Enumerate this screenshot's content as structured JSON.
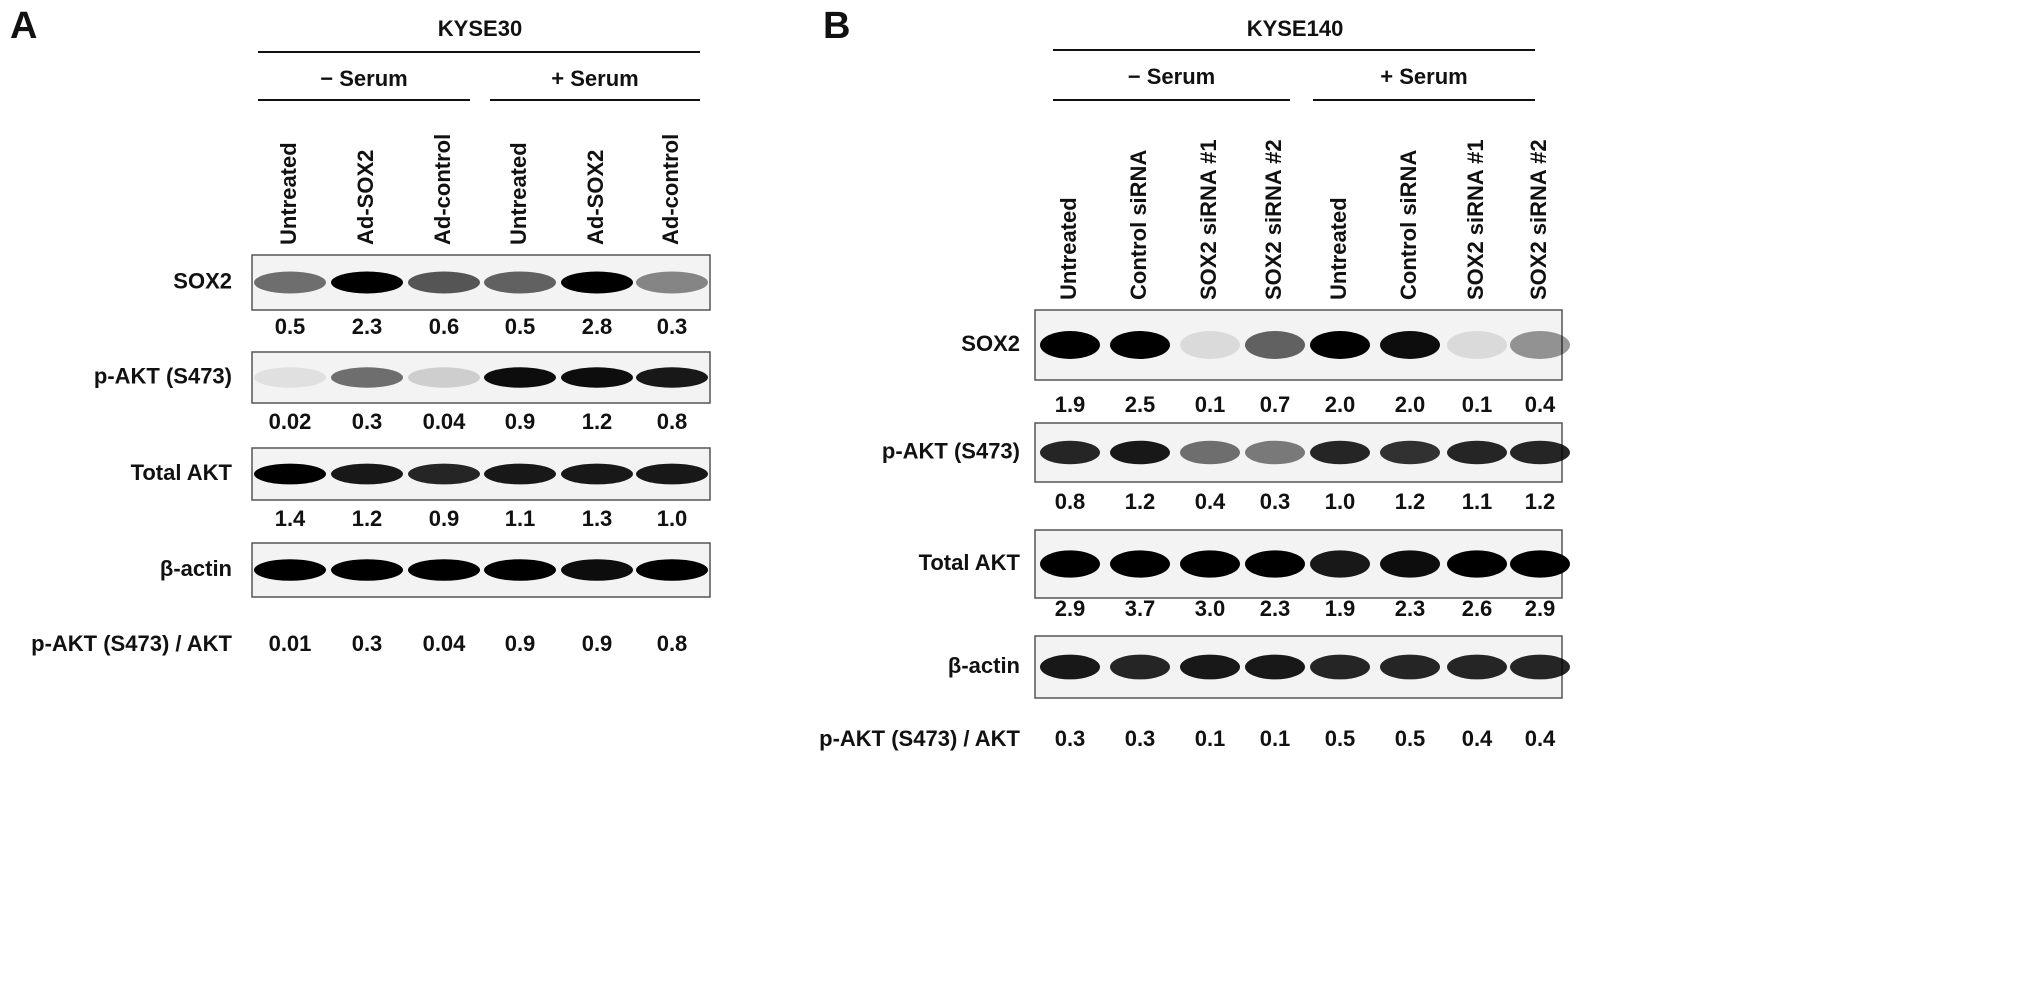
{
  "panels": [
    {
      "letter": "A",
      "cell_line": "KYSE30",
      "groups": [
        "− Serum",
        "+ Serum"
      ],
      "lanes": [
        "Untreated",
        "Ad-SOX2",
        "Ad-control",
        "Untreated",
        "Ad-SOX2",
        "Ad-control"
      ],
      "blots": [
        {
          "label": "SOX2",
          "values": [
            "0.5",
            "2.3",
            "0.6",
            "0.5",
            "2.8",
            "0.3"
          ]
        },
        {
          "label": "p-AKT (S473)",
          "values": [
            "0.02",
            "0.3",
            "0.04",
            "0.9",
            "1.2",
            "0.8"
          ]
        },
        {
          "label": "Total AKT",
          "values": [
            "1.4",
            "1.2",
            "0.9",
            "1.1",
            "1.3",
            "1.0"
          ]
        },
        {
          "label": "β-actin"
        }
      ],
      "ratio": {
        "label": "p-AKT (S473) / AKT",
        "values": [
          "0.01",
          "0.3",
          "0.04",
          "0.9",
          "0.9",
          "0.8"
        ]
      }
    },
    {
      "letter": "B",
      "cell_line": "KYSE140",
      "groups": [
        "− Serum",
        "+ Serum"
      ],
      "lanes": [
        "Untreated",
        "Control siRNA",
        "SOX2 siRNA #1",
        "SOX2 siRNA #2",
        "Untreated",
        "Control siRNA",
        "SOX2 siRNA #1",
        "SOX2 siRNA #2"
      ],
      "blots": [
        {
          "label": "SOX2",
          "values": [
            "1.9",
            "2.5",
            "0.1",
            "0.7",
            "2.0",
            "2.0",
            "0.1",
            "0.4"
          ]
        },
        {
          "label": "p-AKT (S473)",
          "values": [
            "0.8",
            "1.2",
            "0.4",
            "0.3",
            "1.0",
            "1.2",
            "1.1",
            "1.2"
          ]
        },
        {
          "label": "Total AKT",
          "values": [
            "2.9",
            "3.7",
            "3.0",
            "2.3",
            "1.9",
            "2.3",
            "2.6",
            "2.9"
          ]
        },
        {
          "label": "β-actin"
        }
      ],
      "ratio": {
        "label": "p-AKT (S473) / AKT",
        "values": [
          "0.3",
          "0.3",
          "0.1",
          "0.1",
          "0.5",
          "0.5",
          "0.4",
          "0.4"
        ]
      }
    }
  ]
}
